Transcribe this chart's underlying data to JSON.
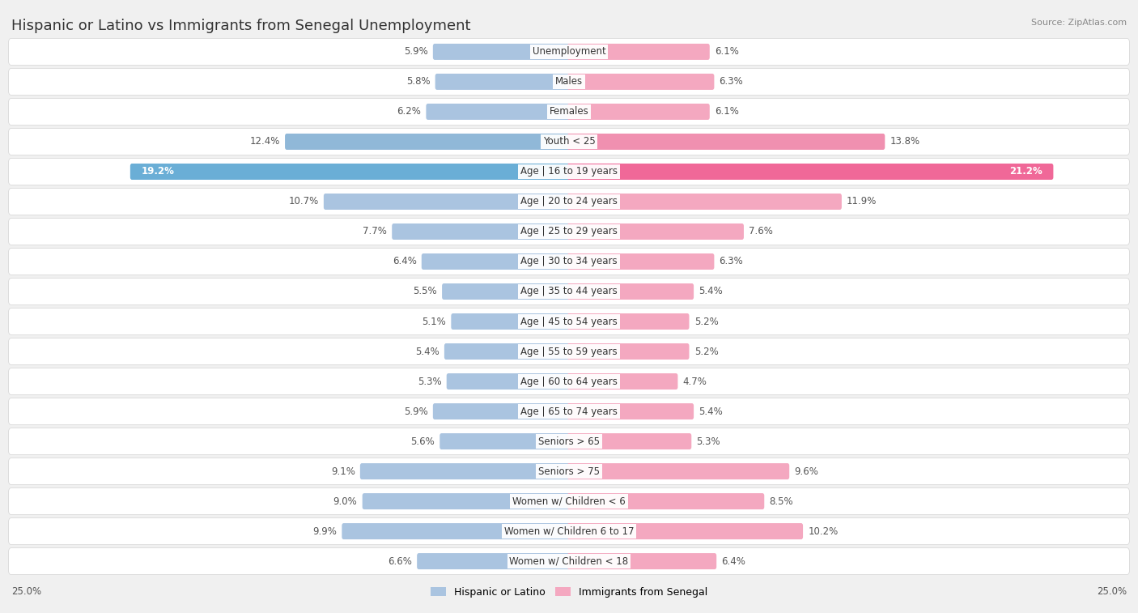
{
  "title": "Hispanic or Latino vs Immigrants from Senegal Unemployment",
  "source": "Source: ZipAtlas.com",
  "categories": [
    "Unemployment",
    "Males",
    "Females",
    "Youth < 25",
    "Age | 16 to 19 years",
    "Age | 20 to 24 years",
    "Age | 25 to 29 years",
    "Age | 30 to 34 years",
    "Age | 35 to 44 years",
    "Age | 45 to 54 years",
    "Age | 55 to 59 years",
    "Age | 60 to 64 years",
    "Age | 65 to 74 years",
    "Seniors > 65",
    "Seniors > 75",
    "Women w/ Children < 6",
    "Women w/ Children 6 to 17",
    "Women w/ Children < 18"
  ],
  "left_values": [
    5.9,
    5.8,
    6.2,
    12.4,
    19.2,
    10.7,
    7.7,
    6.4,
    5.5,
    5.1,
    5.4,
    5.3,
    5.9,
    5.6,
    9.1,
    9.0,
    9.9,
    6.6
  ],
  "right_values": [
    6.1,
    6.3,
    6.1,
    13.8,
    21.2,
    11.9,
    7.6,
    6.3,
    5.4,
    5.2,
    5.2,
    4.7,
    5.4,
    5.3,
    9.6,
    8.5,
    10.2,
    6.4
  ],
  "left_color_normal": "#aac4e0",
  "right_color_normal": "#f4a8c0",
  "left_color_medium": "#90b8d8",
  "right_color_medium": "#f090b0",
  "left_color_high": "#6aaed6",
  "right_color_high": "#f06898",
  "legend_left": "Hispanic or Latino",
  "legend_right": "Immigrants from Senegal",
  "x_max": 25.0,
  "bg_color": "#f0f0f0",
  "row_color": "#ffffff",
  "title_fontsize": 13,
  "label_fontsize": 8.5,
  "value_fontsize": 8.5
}
